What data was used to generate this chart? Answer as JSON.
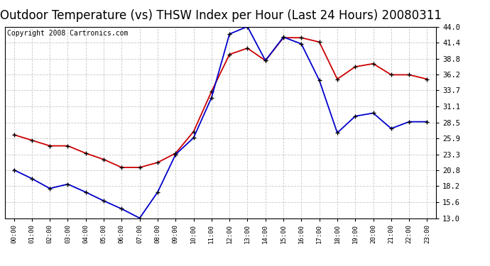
{
  "title": "Outdoor Temperature (vs) THSW Index per Hour (Last 24 Hours) 20080311",
  "copyright": "Copyright 2008 Cartronics.com",
  "hours": [
    0,
    1,
    2,
    3,
    4,
    5,
    6,
    7,
    8,
    9,
    10,
    11,
    12,
    13,
    14,
    15,
    16,
    17,
    18,
    19,
    20,
    21,
    22,
    23
  ],
  "hour_labels": [
    "00:00",
    "01:00",
    "02:00",
    "03:00",
    "04:00",
    "05:00",
    "06:00",
    "07:00",
    "08:00",
    "09:00",
    "10:00",
    "11:00",
    "12:00",
    "13:00",
    "14:00",
    "15:00",
    "16:00",
    "17:00",
    "18:00",
    "19:00",
    "20:00",
    "21:00",
    "22:00",
    "23:00"
  ],
  "temp_red": [
    26.5,
    25.6,
    24.7,
    24.7,
    23.5,
    22.5,
    21.2,
    21.2,
    22.0,
    23.5,
    27.0,
    33.5,
    39.5,
    40.5,
    38.5,
    42.2,
    42.2,
    41.5,
    35.5,
    37.5,
    38.0,
    36.2,
    36.2,
    35.5
  ],
  "temp_blue": [
    20.8,
    19.4,
    17.8,
    18.5,
    17.2,
    15.8,
    14.5,
    13.0,
    17.2,
    23.3,
    26.0,
    32.5,
    42.8,
    44.0,
    38.5,
    42.3,
    41.2,
    35.3,
    26.8,
    29.5,
    30.0,
    27.5,
    28.6,
    28.6
  ],
  "ylim": [
    13.0,
    44.0
  ],
  "yticks": [
    13.0,
    15.6,
    18.2,
    20.8,
    23.3,
    25.9,
    28.5,
    31.1,
    33.7,
    36.2,
    38.8,
    41.4,
    44.0
  ],
  "red_color": "#cc0000",
  "blue_color": "#0000cc",
  "grid_color": "#c8c8c8",
  "bg_color": "#ffffff",
  "title_fontsize": 12,
  "copyright_fontsize": 7
}
